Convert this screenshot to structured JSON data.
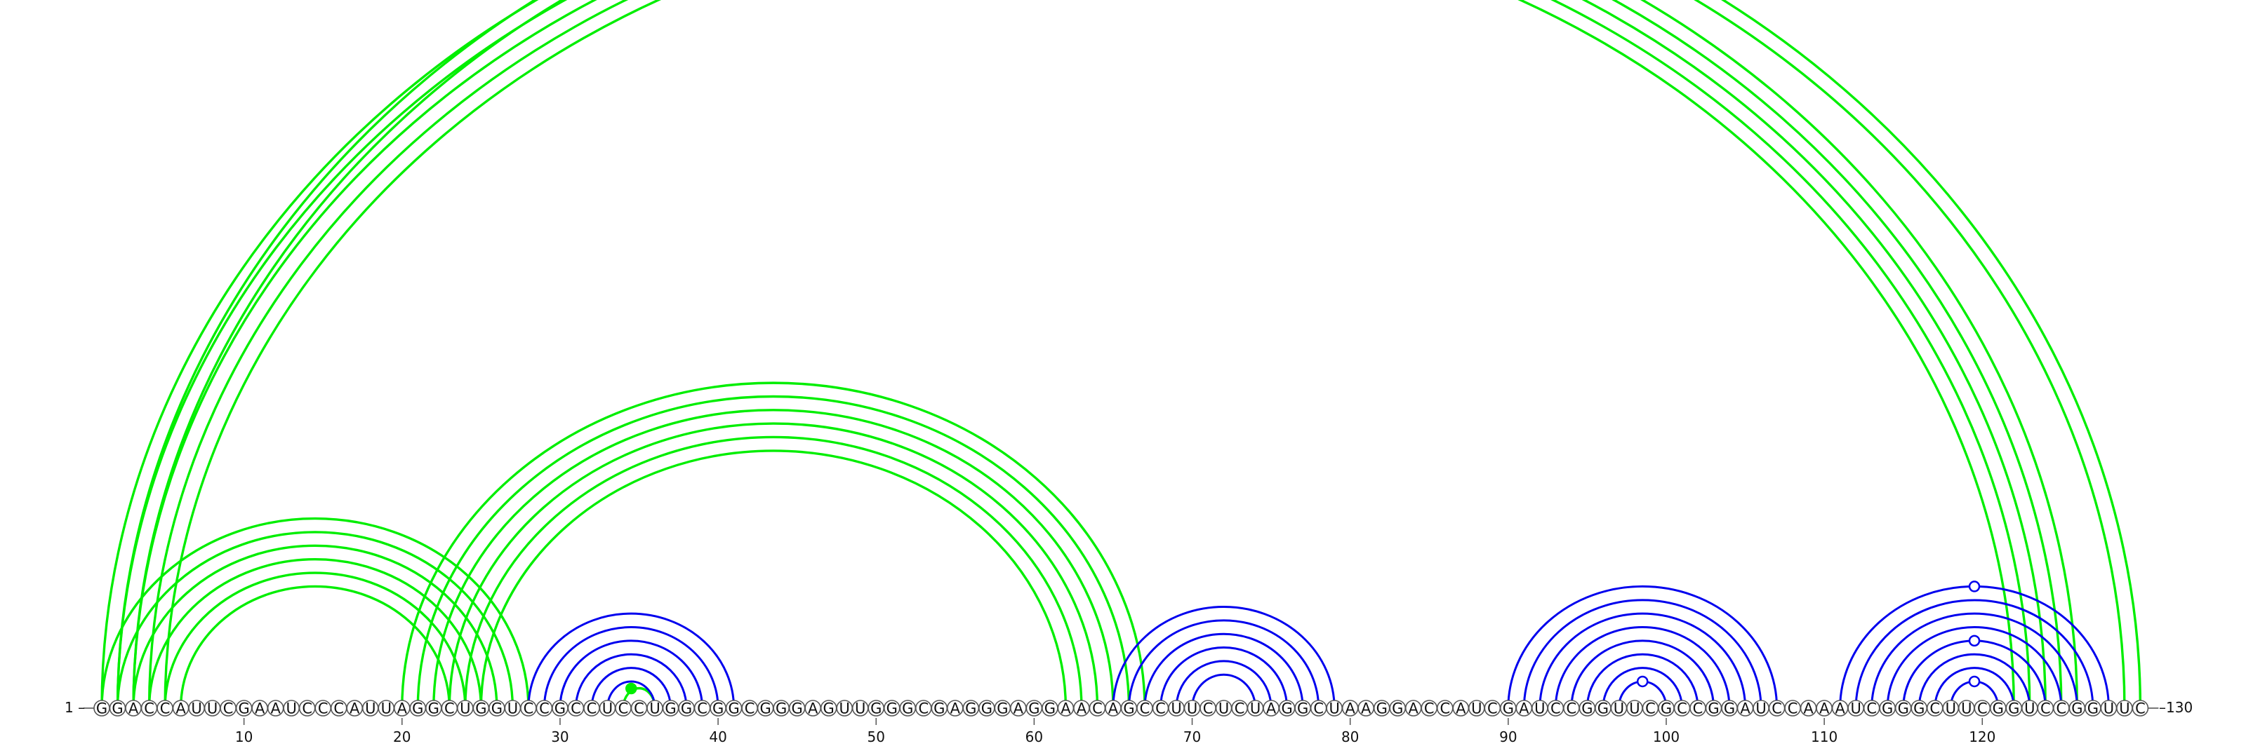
{
  "diagram": {
    "type": "rna-arc-diagram",
    "sequence": "GGACCAUUCGAAUCCCAUUAGGCUGGUCCGCCUCCUGGCGGCGGGAGUUGGGCGAGGGAGGAACAGCCUUCUCUAGGCUAAGGACCAUCGAUCCGGUUCGCCGGAUCCAAAUCGGGCUUCGGUCCGGUUC",
    "start_label": "1",
    "end_label": "130",
    "tick_labels": [
      "10",
      "20",
      "30",
      "40",
      "50",
      "60",
      "70",
      "80",
      "90",
      "100",
      "110",
      "120"
    ],
    "colors": {
      "green_pairs": "#00ee00",
      "blue_pairs": "#0000ee",
      "node_fill": "#ffffff",
      "node_stroke": "#555555"
    },
    "helices": [
      {
        "color": "green",
        "pairs": [
          [
            1,
            126
          ],
          [
            2,
            125
          ],
          [
            3,
            124
          ],
          [
            4,
            123
          ],
          [
            5,
            122
          ]
        ]
      },
      {
        "color": "green",
        "pairs": [
          [
            2,
            130
          ],
          [
            3,
            129
          ]
        ]
      },
      {
        "color": "green",
        "pairs": [
          [
            1,
            28
          ],
          [
            2,
            27
          ],
          [
            3,
            26
          ],
          [
            4,
            25
          ],
          [
            5,
            24
          ],
          [
            6,
            23
          ]
        ]
      },
      {
        "color": "green",
        "pairs": [
          [
            20,
            67
          ],
          [
            21,
            66
          ],
          [
            22,
            65
          ],
          [
            23,
            64
          ],
          [
            24,
            63
          ],
          [
            25,
            62
          ]
        ]
      },
      {
        "color": "green",
        "pairs": [
          [
            34,
            36
          ]
        ]
      },
      {
        "color": "blue",
        "pairs": [
          [
            28,
            41
          ],
          [
            29,
            40
          ],
          [
            30,
            39
          ],
          [
            31,
            38
          ],
          [
            32,
            37
          ],
          [
            33,
            36
          ]
        ]
      },
      {
        "color": "blue",
        "pairs": [
          [
            65,
            79
          ],
          [
            66,
            78
          ],
          [
            67,
            77
          ],
          [
            68,
            76
          ],
          [
            69,
            75
          ],
          [
            70,
            74
          ]
        ]
      },
      {
        "color": "blue",
        "pairs": [
          [
            90,
            107
          ],
          [
            91,
            106
          ],
          [
            92,
            105
          ],
          [
            93,
            104
          ],
          [
            94,
            103
          ],
          [
            95,
            102
          ],
          [
            96,
            101
          ],
          [
            97,
            100
          ]
        ]
      },
      {
        "color": "blue",
        "pairs": [
          [
            111,
            128
          ],
          [
            112,
            127
          ],
          [
            113,
            126
          ],
          [
            114,
            125
          ],
          [
            115,
            124
          ],
          [
            116,
            123
          ],
          [
            117,
            122
          ],
          [
            118,
            121
          ]
        ]
      }
    ],
    "markers": [
      {
        "pos": 65.3,
        "color": "green",
        "on": "helix-0",
        "filled": false
      },
      {
        "pos": 34.5,
        "color": "green",
        "on": "base",
        "filled": true
      },
      {
        "pos": 98.5,
        "color": "blue",
        "on": "helix-7-inner",
        "filled": false
      },
      {
        "pos": 119.5,
        "color": "blue",
        "on": "helix-8-outer",
        "filled": false
      },
      {
        "pos": 119.5,
        "color": "blue",
        "on": "helix-8-mid",
        "filled": false
      },
      {
        "pos": 119.5,
        "color": "blue",
        "on": "helix-8-inner",
        "filled": false
      }
    ]
  }
}
